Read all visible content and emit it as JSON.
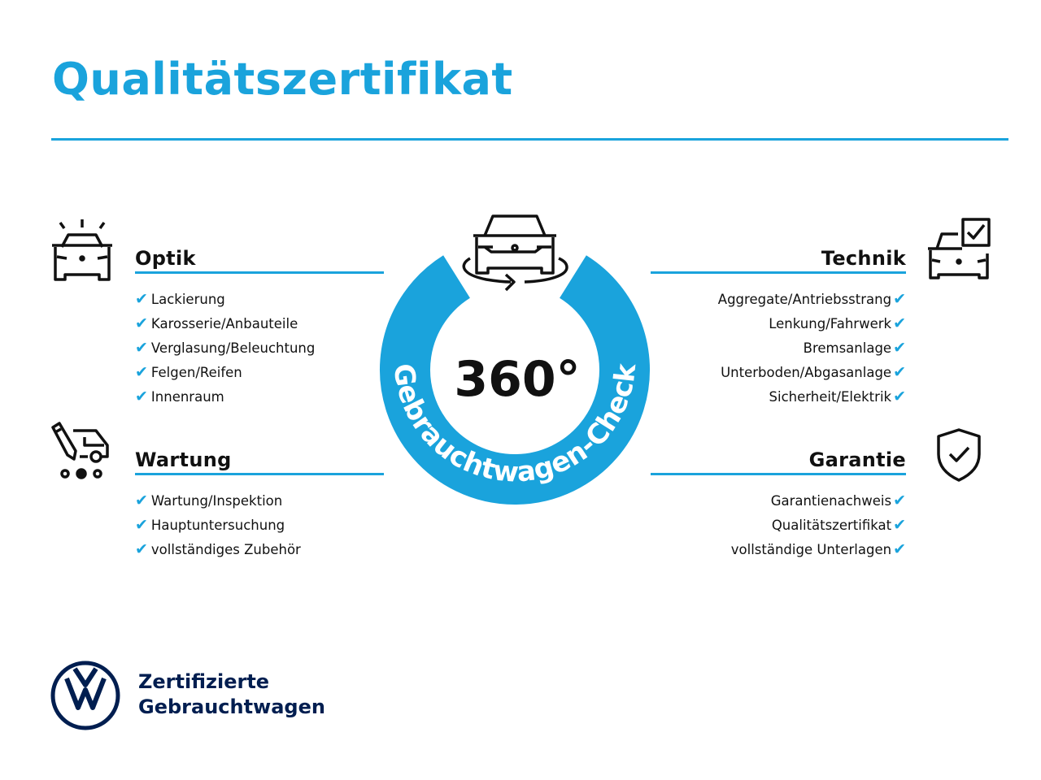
{
  "title": "Qualitätszertifikat",
  "colors": {
    "accent": "#1aa3dc",
    "brand": "#001e50"
  },
  "badge": {
    "value": "360°",
    "ring_text": "Gebrauchtwagen-Check",
    "icon": "car-rotate-icon"
  },
  "sections": {
    "optik": {
      "heading": "Optik",
      "icon": "car-lights-icon",
      "items": [
        "Lackierung",
        "Karosserie/Anbauteile",
        "Verglasung/Beleuchtung",
        "Felgen/Reifen",
        "Innenraum"
      ]
    },
    "technik": {
      "heading": "Technik",
      "icon": "car-check-icon",
      "items": [
        "Aggregate/Antriebsstrang",
        "Lenkung/Fahrwerk",
        "Bremsanlage",
        "Unterboden/Abgasanlage",
        "Sicherheit/Elektrik"
      ]
    },
    "wartung": {
      "heading": "Wartung",
      "icon": "service-van-icon",
      "items": [
        "Wartung/Inspektion",
        "Hauptuntersuchung",
        "vollständiges Zubehör"
      ]
    },
    "garantie": {
      "heading": "Garantie",
      "icon": "shield-check-icon",
      "items": [
        "Garantienachweis",
        "Qualitätszertifikat",
        "vollständige Unterlagen"
      ]
    }
  },
  "check_glyph": "✔",
  "footer": {
    "line1": "Zertifizierte",
    "line2": "Gebrauchtwagen",
    "logo": "vw-logo"
  }
}
